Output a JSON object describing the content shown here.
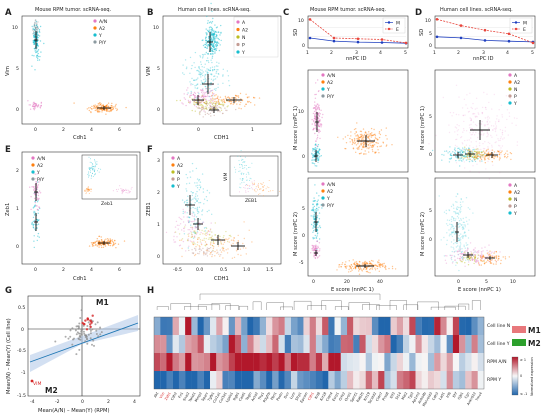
{
  "panel_labels": [
    "A",
    "B",
    "C",
    "D",
    "E",
    "F",
    "G",
    "H"
  ],
  "colors": {
    "A/N": "#e377c2",
    "A": "#e377c2",
    "A2": "#ff7f0e",
    "N": "#bcbd22",
    "Y": "#17becf",
    "P": "#c49c94",
    "P/Y": "#8c9aa0",
    "grid": "#d9d9d9",
    "line_M": "#1f3fbf",
    "line_E": "#e8453c",
    "regression": "#1f77b4",
    "ci_band": "#aec7e8",
    "M1": "#e8787c",
    "M2": "#2ca02c",
    "annot_red": "#d62728"
  },
  "panelA": {
    "title": "Mouse RPM tumor. scRNA-seq.",
    "xlabel": "Cdh1",
    "ylabel": "Vim",
    "xticks": [
      "0",
      "2",
      "4",
      "6"
    ],
    "yticks": [
      "0",
      "5",
      "10"
    ],
    "legend": [
      "A/N",
      "A2",
      "Y",
      "P/Y"
    ]
  },
  "panelB": {
    "title": "Human cell lines. scRNA-seq.",
    "xlabel": "CDH1",
    "ylabel": "VIM",
    "xticks": [
      "0",
      "1"
    ],
    "yticks": [
      "0",
      "5",
      "10"
    ],
    "legend": [
      "A",
      "A2",
      "N",
      "P",
      "Y"
    ]
  },
  "panelC": {
    "title": "Mouse RPM tumor. scRNA-seq.",
    "line": {
      "ylabel": "SD",
      "xlabel": "nnPC ID",
      "x": [
        1,
        2,
        3,
        4,
        5
      ],
      "xticks": [
        "1",
        "2",
        "3",
        "4",
        "5"
      ],
      "yticks": [
        "0",
        "10"
      ],
      "series": [
        {
          "name": "M",
          "values": [
            4.6,
            2.8,
            2.2,
            2.0,
            1.6
          ]
        },
        {
          "name": "E",
          "values": [
            15.2,
            4.6,
            4.1,
            3.7,
            1.8
          ]
        }
      ]
    },
    "top": {
      "ylabel": "M score (nnPC 1)",
      "yticks": [
        "0",
        "10"
      ],
      "legend": [
        "A/N",
        "A2",
        "Y",
        "P/Y"
      ]
    },
    "bottom": {
      "ylabel": "M score (nnPC 2)",
      "xlabel": "E score (nnPC 1)",
      "xticks": [
        "0",
        "20",
        "40"
      ],
      "yticks": [
        "-5",
        "0",
        "5"
      ],
      "legend": [
        "A/N",
        "A2",
        "Y",
        "P/Y"
      ]
    }
  },
  "panelD": {
    "title": "Human cell lines. scRNA-seq.",
    "line": {
      "ylabel": "SD",
      "xlabel": "nnPC ID",
      "x": [
        1,
        2,
        3,
        4,
        5
      ],
      "xticks": [
        "1",
        "2",
        "3",
        "4",
        "5"
      ],
      "yticks": [
        "0",
        "5",
        "10"
      ],
      "series": [
        {
          "name": "M",
          "values": [
            3.6,
            3.2,
            2.2,
            1.9,
            1.6
          ]
        },
        {
          "name": "E",
          "values": [
            10.5,
            8.0,
            6.2,
            4.8,
            1.2
          ]
        }
      ]
    },
    "top": {
      "ylabel": "M score (nnPC 1)",
      "yticks": [
        "0",
        "5"
      ],
      "legend": [
        "A",
        "A2",
        "N",
        "P",
        "Y"
      ]
    },
    "bottom": {
      "ylabel": "M score (nnPC 2)",
      "xlabel": "E score (nnPC 1)",
      "xticks": [
        "0",
        "5",
        "10"
      ],
      "yticks": [
        "0",
        "5"
      ],
      "legend": [
        "A",
        "A2",
        "N",
        "P",
        "Y"
      ]
    }
  },
  "panelE": {
    "xlabel": "Cdh1",
    "ylabel": "Zeb1",
    "xticks": [
      "0",
      "2",
      "4",
      "6"
    ],
    "yticks": [
      "0",
      "1",
      "2"
    ],
    "legend": [
      "A/N",
      "A2",
      "Y",
      "P/Y"
    ],
    "inset_xlabel": "Zeb1"
  },
  "panelF": {
    "xlabel": "CDH1",
    "ylabel": "ZEB1",
    "xticks": [
      "-0.5",
      "0.0",
      "0.5",
      "1.0",
      "1.5"
    ],
    "yticks": [
      "0",
      "1",
      "2",
      "3"
    ],
    "legend": [
      "A",
      "A2",
      "N",
      "P",
      "Y"
    ],
    "inset_xlabel": "ZEB1",
    "inset_ylabel": "VIM"
  },
  "panelG": {
    "xlabel": "Mean(A/N) – Mean(Y) (RPM)",
    "ylabel": "Mean(N) – Mean(Y) (Cell line)",
    "xticks": [
      "-4",
      "-2",
      "0",
      "2",
      "4"
    ],
    "yticks": [
      "-1.5",
      "-1",
      "-0.5",
      "0",
      "0.5"
    ],
    "quadrant_M1": "M1",
    "quadrant_M2": "M2",
    "vim_label": "VIM"
  },
  "panelH": {
    "row_labels": [
      "Cell line N",
      "Cell line Y",
      "RPM A/N",
      "RPM Y"
    ],
    "genes": [
      "Akt",
      "Vim",
      "Zeb1",
      "Cdh2",
      "Fn1",
      "Snai2",
      "Twist1",
      "Mmp2",
      "Sparc",
      "Tgfb1",
      "Col1a1",
      "Col3a1",
      "Lgals1",
      "Itgb1",
      "Cald1",
      "Tagln",
      "Acta2",
      "Thy1",
      "Pdgfrb",
      "Fbn1",
      "Postn",
      "Dcn",
      "Lum",
      "Sfrp1",
      "Epcam",
      "Cdh1",
      "Krt8",
      "Krt18",
      "Cldn4",
      "Esrp1",
      "Grhl2",
      "Ovol1",
      "Spint1",
      "Rab25",
      "Krt19",
      "Tacstd2",
      "Cldn7",
      "Prss8",
      "Elf3",
      "St14",
      "Mal2",
      "Tjp3",
      "Ap1m2",
      "Anks4b",
      "Marveld3",
      "Cdh3",
      "Lad1",
      "Irf6",
      "Ehf",
      "Gjb1",
      "Cgn",
      "Ankrd22",
      "Tmc4"
    ],
    "legend_M1": "M1",
    "legend_M2": "M2",
    "colorbar_label": "Normalized expression",
    "colorbar_max": "≥ 1",
    "colorbar_mid": "0",
    "colorbar_min": "≤ -1"
  }
}
